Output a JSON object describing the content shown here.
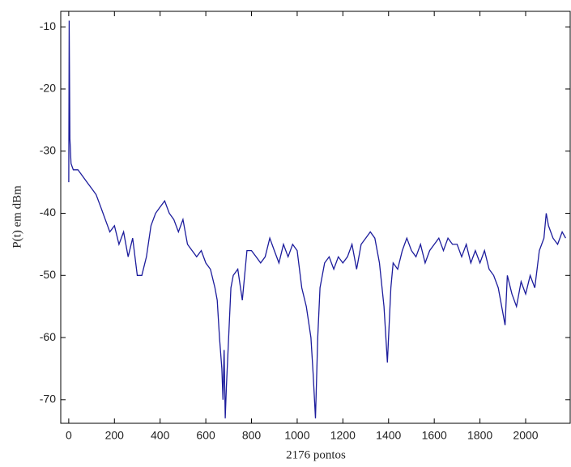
{
  "chart_data": {
    "type": "line",
    "xlabel": "2176 pontos",
    "ylabel": "P(t) em dBm",
    "x": [
      0,
      2,
      5,
      10,
      20,
      40,
      60,
      80,
      100,
      120,
      140,
      160,
      180,
      200,
      220,
      240,
      260,
      280,
      300,
      320,
      340,
      360,
      380,
      400,
      420,
      440,
      460,
      480,
      500,
      520,
      540,
      560,
      580,
      600,
      620,
      640,
      650,
      660,
      670,
      675,
      680,
      685,
      690,
      700,
      710,
      720,
      740,
      760,
      780,
      800,
      820,
      840,
      860,
      880,
      900,
      920,
      940,
      960,
      980,
      1000,
      1020,
      1040,
      1060,
      1070,
      1080,
      1090,
      1100,
      1120,
      1140,
      1160,
      1180,
      1200,
      1220,
      1240,
      1260,
      1280,
      1300,
      1320,
      1340,
      1360,
      1380,
      1395,
      1410,
      1420,
      1440,
      1460,
      1480,
      1500,
      1520,
      1540,
      1560,
      1580,
      1600,
      1620,
      1640,
      1660,
      1680,
      1700,
      1720,
      1740,
      1760,
      1780,
      1800,
      1820,
      1840,
      1860,
      1880,
      1900,
      1910,
      1920,
      1940,
      1960,
      1980,
      2000,
      2020,
      2040,
      2060,
      2080,
      2090,
      2100,
      2120,
      2140,
      2160,
      2175
    ],
    "series": [
      {
        "name": "P(t)",
        "color": "#1c1c9c",
        "values": [
          -35,
          -9,
          -28,
          -32,
          -33,
          -33,
          -34,
          -35,
          -36,
          -37,
          -39,
          -41,
          -43,
          -42,
          -45,
          -43,
          -47,
          -44,
          -50,
          -50,
          -47,
          -42,
          -40,
          -39,
          -38,
          -40,
          -41,
          -43,
          -41,
          -45,
          -46,
          -47,
          -46,
          -48,
          -49,
          -52,
          -54,
          -60,
          -65,
          -70,
          -62,
          -73,
          -68,
          -60,
          -52,
          -50,
          -49,
          -54,
          -46,
          -46,
          -47,
          -48,
          -47,
          -44,
          -46,
          -48,
          -45,
          -47,
          -45,
          -46,
          -52,
          -55,
          -60,
          -66,
          -73,
          -60,
          -52,
          -48,
          -47,
          -49,
          -47,
          -48,
          -47,
          -45,
          -49,
          -45,
          -44,
          -43,
          -44,
          -48,
          -55,
          -64,
          -52,
          -48,
          -49,
          -46,
          -44,
          -46,
          -47,
          -45,
          -48,
          -46,
          -45,
          -44,
          -46,
          -44,
          -45,
          -45,
          -47,
          -45,
          -48,
          -46,
          -48,
          -46,
          -49,
          -50,
          -52,
          -56,
          -58,
          -50,
          -53,
          -55,
          -51,
          -53,
          -50,
          -52,
          -46,
          -44,
          -40,
          -42,
          -44,
          -45,
          -43,
          -44
        ]
      }
    ],
    "xlim": [
      -35,
      2195
    ],
    "ylim": [
      -73.8,
      -7.5
    ],
    "xticks": [
      0,
      200,
      400,
      600,
      800,
      1000,
      1200,
      1400,
      1600,
      1800,
      2000
    ],
    "yticks": [
      -70,
      -60,
      -50,
      -40,
      -30,
      -20,
      -10
    ]
  }
}
